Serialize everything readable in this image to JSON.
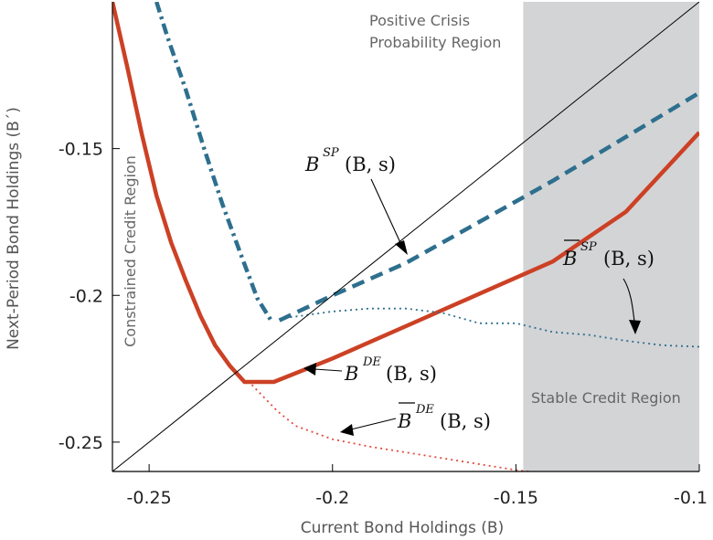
{
  "chart_data": {
    "type": "line",
    "xlabel": "Current Bond Holdings (B)",
    "ylabel": "Next-Period Bond Holdings (B´)",
    "xlim": [
      -0.26,
      -0.1
    ],
    "ylim": [
      -0.26,
      -0.1
    ],
    "x_ticks": [
      -0.25,
      -0.2,
      -0.15,
      -0.1
    ],
    "x_tick_labels": [
      "-0.25",
      "-0.2",
      "-0.15",
      "-0.1"
    ],
    "y_ticks": [
      -0.25,
      -0.2,
      -0.15
    ],
    "y_tick_labels": [
      "-0.25",
      "-0.2",
      "-0.15"
    ],
    "grid": false,
    "shaded_region": {
      "x_from": -0.148,
      "x_to": -0.1,
      "color": "#d3d4d6"
    },
    "region_labels": {
      "positive_crisis": [
        "Positive Crisis",
        "Probability Region"
      ],
      "stable_credit": "Stable Credit Region",
      "constrained_credit": "Constrained Credit Region"
    },
    "annotations": {
      "sp_policy": {
        "base": "B",
        "sup": "SP",
        "args": "(B, s)"
      },
      "de_policy": {
        "base": "B",
        "sup": "DE",
        "args": "(B, s)"
      },
      "sp_bound": {
        "base": "B",
        "sup": "SP",
        "args": "(B, s)"
      },
      "de_bound": {
        "base": "B",
        "sup": "DE",
        "args": "(B, s)"
      }
    },
    "series": [
      {
        "style": "solid-thick",
        "color": "#cc4125",
        "x": [
          -0.26,
          -0.256,
          -0.252,
          -0.248,
          -0.244,
          -0.24,
          -0.236,
          -0.232,
          -0.228,
          -0.224,
          -0.216,
          -0.2,
          -0.18,
          -0.16,
          -0.14,
          -0.12,
          -0.1
        ],
        "y": [
          -0.1,
          -0.122,
          -0.145,
          -0.166,
          -0.182,
          -0.195,
          -0.207,
          -0.217,
          -0.224,
          -0.2295,
          -0.2295,
          -0.2215,
          -0.2105,
          -0.1995,
          -0.1885,
          -0.1715,
          -0.1445
        ]
      },
      {
        "style": "dash-dot",
        "color": "#2e6f8e",
        "x": [
          -0.248,
          -0.245,
          -0.24,
          -0.235,
          -0.23,
          -0.225,
          -0.2205,
          -0.2165
        ],
        "y": [
          -0.1,
          -0.112,
          -0.13,
          -0.15,
          -0.169,
          -0.186,
          -0.201,
          -0.209
        ]
      },
      {
        "style": "dashed-thick",
        "color": "#2e6f8e",
        "x": [
          -0.2145,
          -0.2,
          -0.18,
          -0.16,
          -0.14,
          -0.12,
          -0.1
        ],
        "y": [
          -0.2085,
          -0.2,
          -0.189,
          -0.175,
          -0.161,
          -0.146,
          -0.131
        ]
      },
      {
        "style": "dotted",
        "color": "#2e6f8e",
        "x": [
          -0.2145,
          -0.2,
          -0.19,
          -0.18,
          -0.17,
          -0.16,
          -0.15,
          -0.14,
          -0.13,
          -0.12,
          -0.11,
          -0.1
        ],
        "y": [
          -0.208,
          -0.2055,
          -0.2045,
          -0.2045,
          -0.206,
          -0.2095,
          -0.2095,
          -0.2125,
          -0.2135,
          -0.2155,
          -0.217,
          -0.2175
        ]
      },
      {
        "style": "dotted",
        "color": "#e04a3a",
        "x": [
          -0.222,
          -0.215,
          -0.21,
          -0.2,
          -0.19,
          -0.18,
          -0.17,
          -0.16,
          -0.15,
          -0.14
        ],
        "y": [
          -0.2305,
          -0.2395,
          -0.2445,
          -0.249,
          -0.2515,
          -0.2535,
          -0.2555,
          -0.2575,
          -0.2595,
          -0.261
        ]
      },
      {
        "style": "thin",
        "color": "#000000",
        "x": [
          -0.26,
          -0.1
        ],
        "y": [
          -0.26,
          -0.1
        ]
      }
    ]
  }
}
